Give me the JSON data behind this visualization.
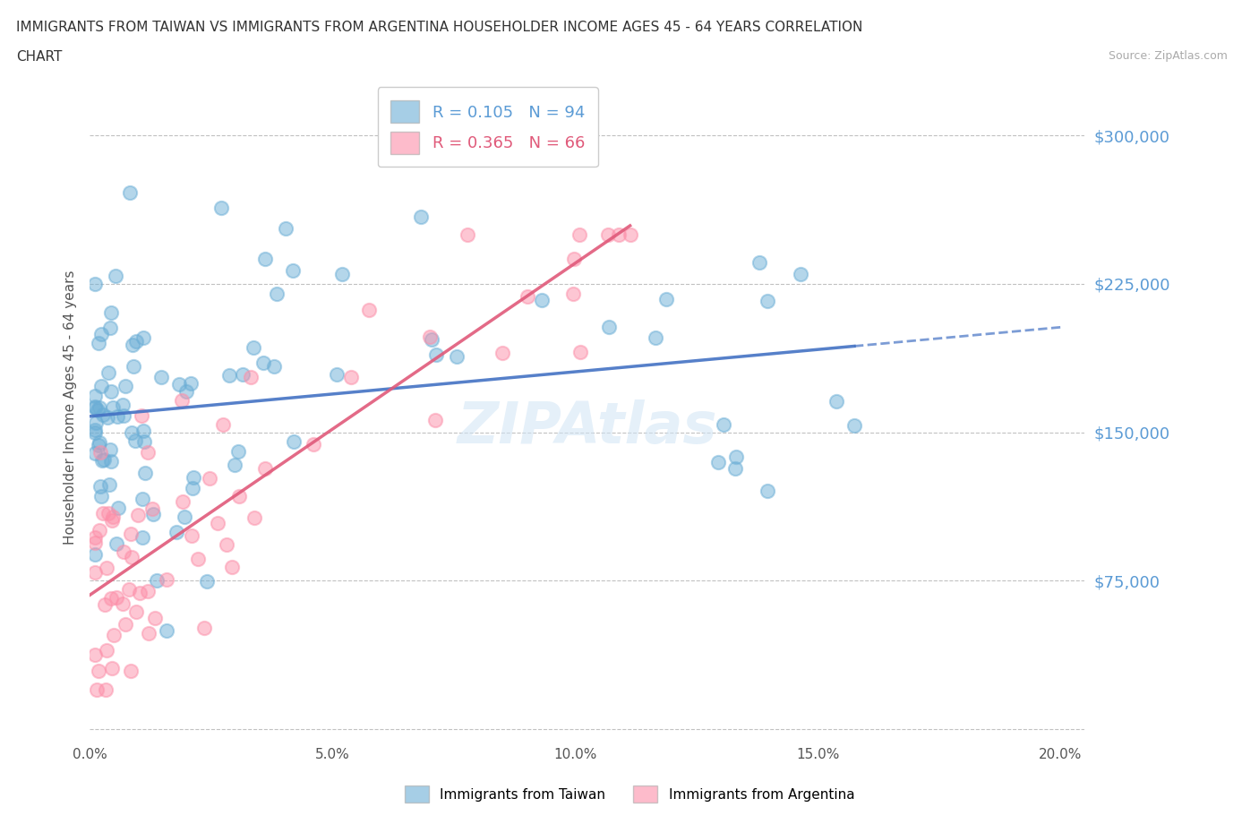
{
  "title_line1": "IMMIGRANTS FROM TAIWAN VS IMMIGRANTS FROM ARGENTINA HOUSEHOLDER INCOME AGES 45 - 64 YEARS CORRELATION",
  "title_line2": "CHART",
  "source": "Source: ZipAtlas.com",
  "ylabel": "Householder Income Ages 45 - 64 years",
  "xlim": [
    0,
    0.205
  ],
  "ylim": [
    -5000,
    330000
  ],
  "yticks": [
    0,
    75000,
    150000,
    225000,
    300000
  ],
  "ytick_labels": [
    "",
    "$75,000",
    "$150,000",
    "$225,000",
    "$300,000"
  ],
  "xticks": [
    0.0,
    0.025,
    0.05,
    0.075,
    0.1,
    0.125,
    0.15,
    0.175,
    0.2
  ],
  "xtick_labels": [
    "0.0%",
    "",
    "5.0%",
    "",
    "10.0%",
    "",
    "15.0%",
    "",
    "20.0%"
  ],
  "taiwan_color": "#6baed6",
  "argentina_color": "#fc8fa9",
  "taiwan_R": 0.105,
  "taiwan_N": 94,
  "argentina_R": 0.365,
  "argentina_N": 66,
  "taiwan_trend_color": "#4472c4",
  "argentina_trend_color": "#e05a7a",
  "taiwan_trend_intercept": 158000,
  "taiwan_trend_slope": 250000,
  "argentina_trend_intercept": 72000,
  "argentina_trend_slope": 1600000,
  "watermark": "ZIPAtlas"
}
